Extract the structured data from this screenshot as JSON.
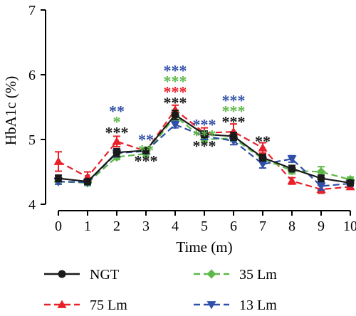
{
  "chart_data": {
    "type": "line",
    "ylabel": "HbA1c (%)",
    "xlabel": "Time (m)",
    "x": [
      0,
      1,
      2,
      3,
      4,
      5,
      6,
      7,
      8,
      9,
      10
    ],
    "xticks": [
      "0",
      "1",
      "2",
      "3",
      "4",
      "5",
      "6",
      "7",
      "8",
      "9",
      "10"
    ],
    "xlim": [
      0,
      10
    ],
    "ylim": [
      4,
      7
    ],
    "yticks": [
      "4",
      "5",
      "6",
      "7"
    ],
    "grid": false,
    "legend_position": "bottom",
    "series": [
      {
        "name": "NGT",
        "color": "#1a1a1a",
        "marker": "circle",
        "dash": "solid",
        "values": [
          4.4,
          4.35,
          4.8,
          4.83,
          5.38,
          5.08,
          5.05,
          4.72,
          4.55,
          4.4,
          4.33
        ],
        "errors": [
          0.05,
          0.04,
          0.06,
          0.04,
          0.07,
          0.05,
          0.06,
          0.05,
          0.05,
          0.05,
          0.04
        ]
      },
      {
        "name": "75 Lm",
        "color": "#e8202a",
        "marker": "triangle-up",
        "dash": "dashed",
        "values": [
          4.66,
          4.42,
          4.97,
          4.82,
          5.46,
          5.1,
          5.12,
          4.87,
          4.36,
          4.23,
          4.27
        ],
        "errors": [
          0.15,
          0.08,
          0.08,
          0.04,
          0.07,
          0.08,
          0.12,
          0.08,
          0.05,
          0.06,
          0.04
        ]
      },
      {
        "name": "35 Lm",
        "color": "#5cb848",
        "marker": "diamond",
        "dash": "dashed",
        "values": [
          4.35,
          4.33,
          4.73,
          4.78,
          5.36,
          5.0,
          5.02,
          4.7,
          4.52,
          4.5,
          4.38
        ],
        "errors": [
          0.04,
          0.04,
          0.04,
          0.04,
          0.06,
          0.04,
          0.05,
          0.05,
          0.05,
          0.08,
          0.04
        ]
      },
      {
        "name": "13 Lm",
        "color": "#2f4fa8",
        "marker": "triangle-down",
        "dash": "dashed",
        "values": [
          4.35,
          4.34,
          4.79,
          4.82,
          5.23,
          5.05,
          4.98,
          4.62,
          4.7,
          4.28,
          4.32
        ],
        "errors": [
          0.04,
          0.04,
          0.06,
          0.04,
          0.05,
          0.05,
          0.06,
          0.06,
          0.05,
          0.06,
          0.04
        ]
      }
    ],
    "annotations": [
      {
        "x": 2,
        "y": 5.14,
        "lines": [
          {
            "text": "**",
            "color": "#2f4fa8"
          },
          {
            "text": "*",
            "color": "#5cb848"
          },
          {
            "text": "***",
            "color": "#1a1a1a"
          }
        ]
      },
      {
        "x": 3,
        "y": 4.7,
        "lines": [
          {
            "text": "**",
            "color": "#2f4fa8"
          },
          {
            "text": "**",
            "color": "#5cb848"
          },
          {
            "text": "***",
            "color": "#1a1a1a"
          }
        ]
      },
      {
        "x": 4,
        "y": 5.6,
        "lines": [
          {
            "text": "***",
            "color": "#2f4fa8"
          },
          {
            "text": "***",
            "color": "#5cb848"
          },
          {
            "text": "***",
            "color": "#e8202a"
          },
          {
            "text": "***",
            "color": "#1a1a1a"
          }
        ]
      },
      {
        "x": 5,
        "y": 4.93,
        "lines": [
          {
            "text": "***",
            "color": "#2f4fa8"
          },
          {
            "text": "***",
            "color": "#5cb848"
          },
          {
            "text": "***",
            "color": "#1a1a1a"
          }
        ]
      },
      {
        "x": 6,
        "y": 5.3,
        "lines": [
          {
            "text": "***",
            "color": "#2f4fa8"
          },
          {
            "text": "***",
            "color": "#5cb848"
          },
          {
            "text": "***",
            "color": "#1a1a1a"
          }
        ]
      },
      {
        "x": 7,
        "y": 5.0,
        "lines": [
          {
            "text": "**",
            "color": "#1a1a1a"
          }
        ]
      }
    ]
  }
}
